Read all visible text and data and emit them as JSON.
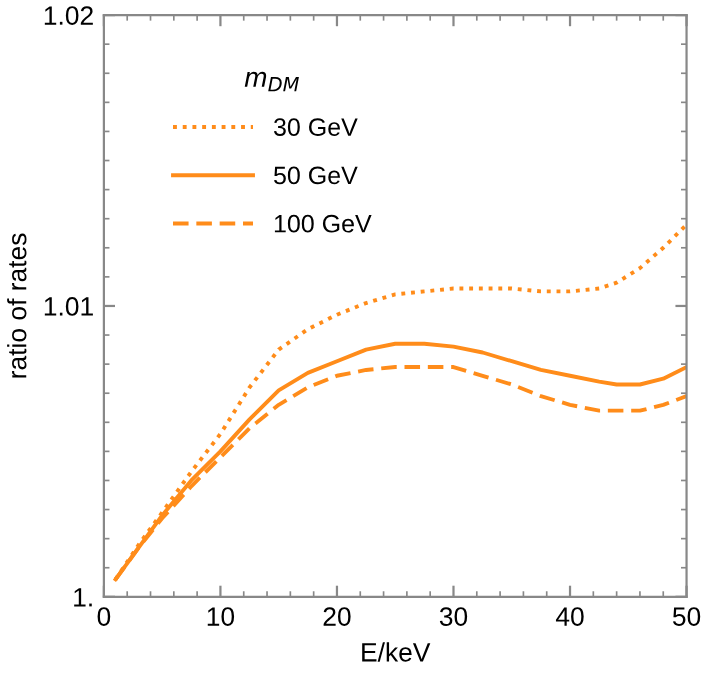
{
  "chart_data": {
    "type": "line",
    "xlabel": "E/keV",
    "ylabel": "ratio of rates",
    "legend_title": "m$_{DM}$",
    "legend": "top left",
    "grid": false,
    "marker": "none",
    "xlim": [
      0,
      50
    ],
    "xticks": [
      0,
      10,
      20,
      30,
      40,
      50
    ],
    "ylim": [
      1.0,
      1.02
    ],
    "yticks": [
      {
        "value": 1.0,
        "label": "1."
      },
      1.01,
      1.02
    ],
    "x": [
      1,
      3,
      5,
      7.5,
      10,
      12.5,
      15,
      17.5,
      20,
      22.5,
      25,
      27.5,
      30,
      32.5,
      35,
      37.5,
      40,
      42.5,
      44,
      46,
      48,
      50
    ],
    "series": [
      {
        "name": "30 GeV",
        "color": "#ff8c1a",
        "line_style": "dotted",
        "values": [
          1.0006,
          1.0018,
          1.0029,
          1.0043,
          1.0056,
          1.0072,
          1.0085,
          1.0092,
          1.0097,
          1.0101,
          1.0104,
          1.0105,
          1.0106,
          1.0106,
          1.0106,
          1.0105,
          1.0105,
          1.0106,
          1.0108,
          1.0113,
          1.012,
          1.0128
        ]
      },
      {
        "name": "50 GeV",
        "color": "#ff8c1a",
        "line_style": "solid",
        "values": [
          1.0006,
          1.0017,
          1.0028,
          1.004,
          1.005,
          1.0061,
          1.0071,
          1.0077,
          1.0081,
          1.0085,
          1.0087,
          1.0087,
          1.0086,
          1.0084,
          1.0081,
          1.0078,
          1.0076,
          1.0074,
          1.0073,
          1.0073,
          1.0075,
          1.0079
        ]
      },
      {
        "name": "100 GeV",
        "color": "#ff8c1a",
        "line_style": "dashed",
        "values": [
          1.0006,
          1.0017,
          1.0027,
          1.0038,
          1.0048,
          1.0058,
          1.0066,
          1.0072,
          1.0076,
          1.0078,
          1.0079,
          1.0079,
          1.0079,
          1.0076,
          1.0073,
          1.0069,
          1.0066,
          1.0064,
          1.0064,
          1.0064,
          1.0066,
          1.0069
        ]
      }
    ]
  }
}
